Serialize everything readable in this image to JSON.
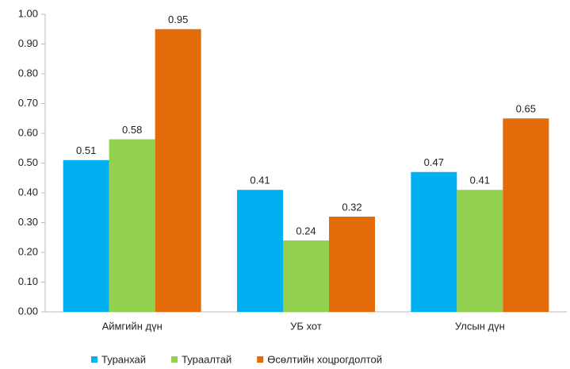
{
  "chart_data": {
    "type": "bar",
    "categories": [
      "Аймгийн дүн",
      "УБ хот",
      "Улсын дүн"
    ],
    "series": [
      {
        "name": "Туранхай",
        "color": "#00b0f0",
        "values": [
          0.51,
          0.41,
          0.47
        ]
      },
      {
        "name": "Тураалтай",
        "color": "#92d050",
        "values": [
          0.58,
          0.24,
          0.41
        ]
      },
      {
        "name": "Өсөлтийн хоцрогдолтой",
        "color": "#e36c09",
        "values": [
          0.95,
          0.32,
          0.65
        ]
      }
    ],
    "ylim": [
      0,
      1
    ],
    "yticks": [
      {
        "value": 0,
        "label": "0.00"
      },
      {
        "value": 0.1,
        "label": "0.10"
      },
      {
        "value": 0.2,
        "label": "0.20"
      },
      {
        "value": 0.3,
        "label": "0.30"
      },
      {
        "value": 0.4,
        "label": "0.40"
      },
      {
        "value": 0.5,
        "label": "0.50"
      },
      {
        "value": 0.6,
        "label": "0.60"
      },
      {
        "value": 0.7,
        "label": "0.70"
      },
      {
        "value": 0.8,
        "label": "0.80"
      },
      {
        "value": 0.9,
        "label": "0.90"
      },
      {
        "value": 1,
        "label": "1.00"
      }
    ],
    "grid": false,
    "legend": "bottom"
  }
}
